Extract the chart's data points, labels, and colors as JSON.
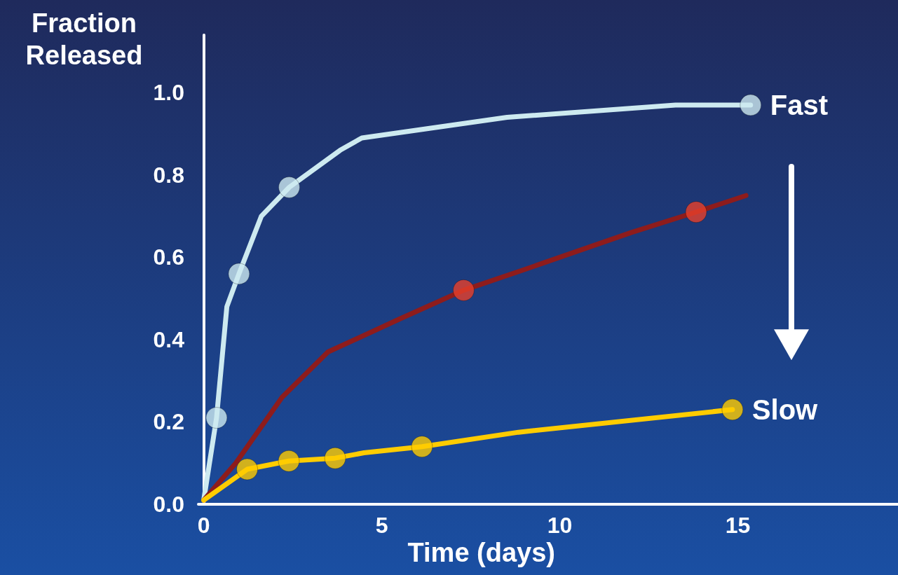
{
  "chart_data": {
    "type": "line",
    "xlabel": "Time (days)",
    "ylabel": "Fraction\nReleased",
    "xlim": [
      -0.15,
      19.5
    ],
    "ylim": [
      0,
      1.14
    ],
    "xticks": [
      0,
      5,
      10,
      15
    ],
    "yticks": [
      {
        "value": 0,
        "label": "0.0"
      },
      {
        "value": 0.2,
        "label": "0.2"
      },
      {
        "value": 0.4,
        "label": "0.4"
      },
      {
        "value": 0.6,
        "label": "0.6"
      },
      {
        "value": 0.8,
        "label": "0.8"
      },
      {
        "value": 1,
        "label": "1.0"
      }
    ],
    "grid": false,
    "marker": "circle",
    "line_style": "solid",
    "series": [
      {
        "marker": "none",
        "color": "#cdeaf0",
        "x": [
          0,
          0.36,
          0.65,
          0.99,
          1.62,
          2.4,
          3.83,
          4.44,
          8.52,
          13.25,
          15.36
        ],
        "values": [
          0.01,
          0.21,
          0.48,
          0.56,
          0.7,
          0.77,
          0.86,
          0.89,
          0.94,
          0.97,
          0.97
        ]
      },
      {
        "type": "scatter",
        "color": "#cdeaf0",
        "x": [
          0.36,
          0.99,
          2.4,
          15.36
        ],
        "values": [
          0.21,
          0.56,
          0.77,
          0.97
        ]
      },
      {
        "marker": "none",
        "color": "#8e1c1c",
        "x": [
          0,
          0.9,
          2.2,
          3.49,
          5.5,
          7.3,
          9,
          12,
          13.83,
          15.23
        ],
        "values": [
          0.01,
          0.1,
          0.26,
          0.37,
          0.45,
          0.52,
          0.57,
          0.66,
          0.71,
          0.75
        ]
      },
      {
        "type": "scatter",
        "color": "#e8402a",
        "x": [
          7.3,
          13.83
        ],
        "values": [
          0.52,
          0.71
        ]
      },
      {
        "marker": "none",
        "color": "#ffcc00",
        "x": [
          0,
          1.22,
          2.39,
          3.69,
          4.5,
          6.13,
          8.84,
          14.85
        ],
        "values": [
          0.01,
          0.085,
          0.105,
          0.112,
          0.125,
          0.14,
          0.175,
          0.23
        ]
      },
      {
        "type": "scatter",
        "color": "#ffcc00",
        "x": [
          1.22,
          2.39,
          3.69,
          6.13,
          14.85
        ],
        "values": [
          0.085,
          0.105,
          0.112,
          0.14,
          0.23
        ]
      }
    ],
    "annotations": [
      {
        "text": "Fast",
        "x": 15.36,
        "y": 0.97
      },
      {
        "text": "Slow",
        "x": 14.85,
        "y": 0.23
      }
    ]
  }
}
